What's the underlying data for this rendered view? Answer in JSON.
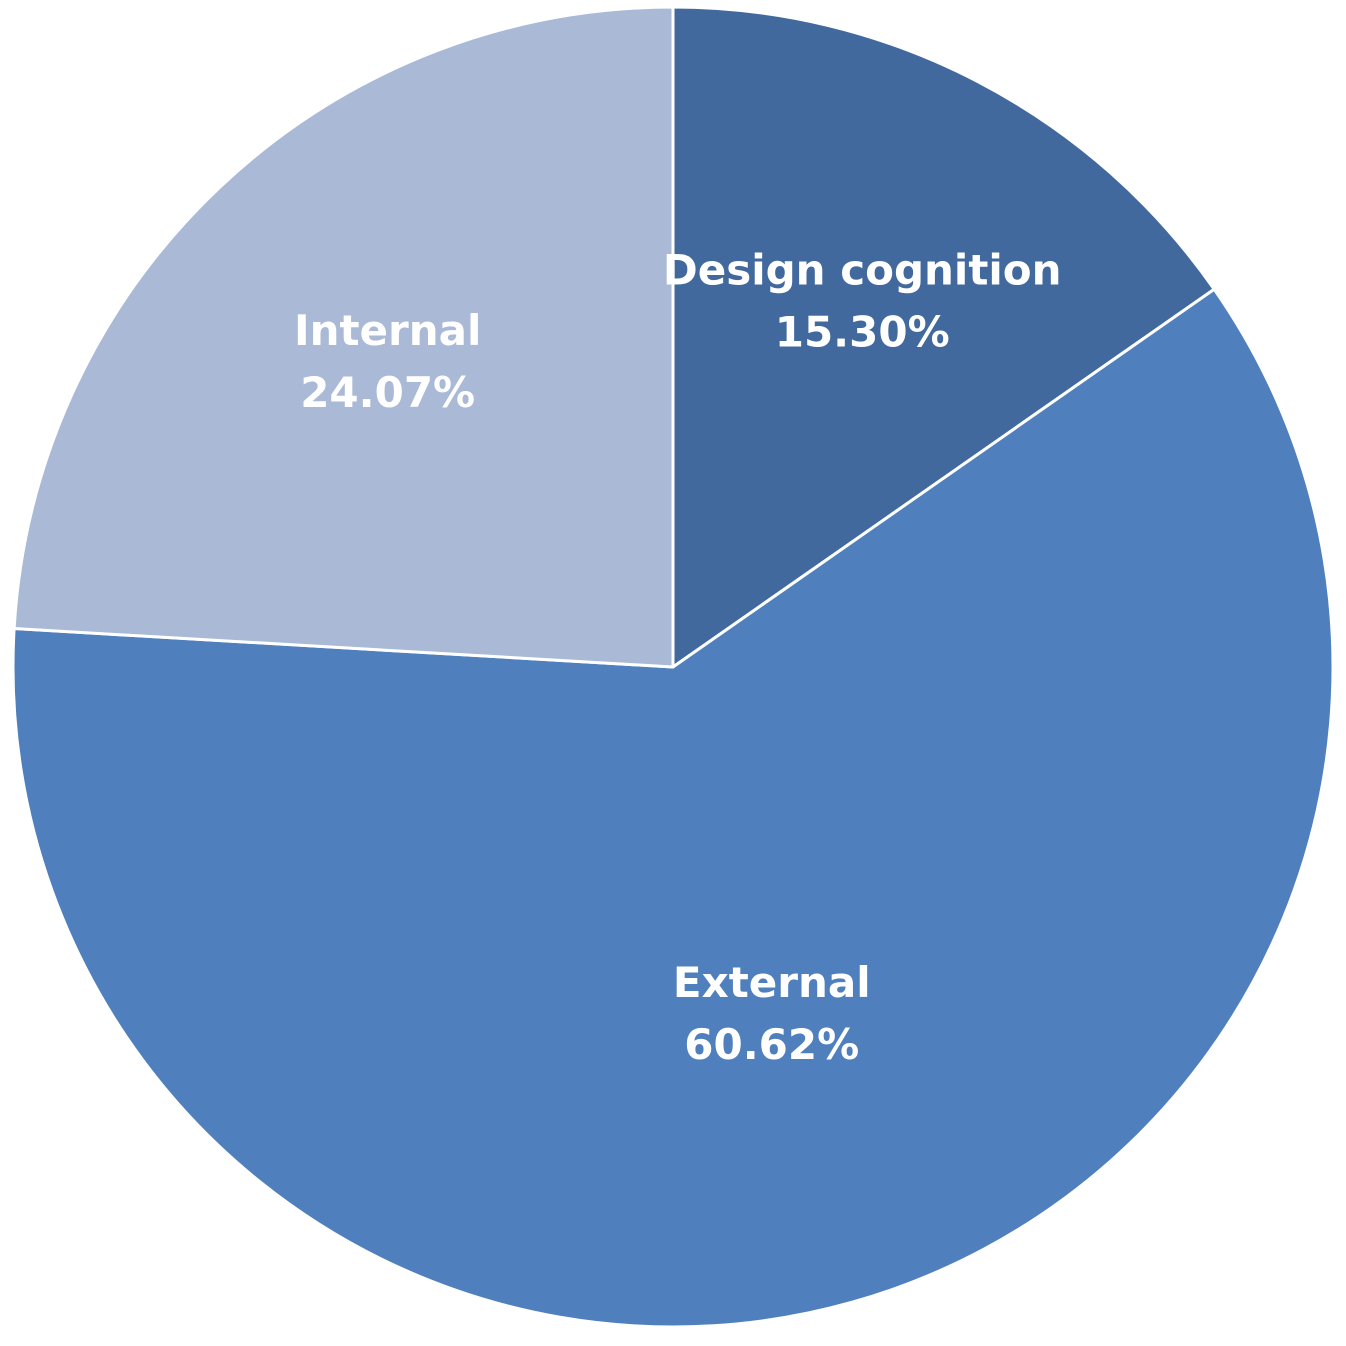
{
  "chart_data": {
    "type": "pie",
    "title": "",
    "start_angle_deg": 0,
    "direction": "clockwise",
    "legend": "none",
    "slices": [
      {
        "label": "Design cognition",
        "value": 15.3,
        "value_text": "15.30%",
        "color": "#41699e"
      },
      {
        "label": "External",
        "value": 60.62,
        "value_text": "60.62%",
        "color": "#4f80bd"
      },
      {
        "label": "Internal",
        "value": 24.07,
        "value_text": "24.07%",
        "color": "#a9b9d6"
      }
    ]
  }
}
